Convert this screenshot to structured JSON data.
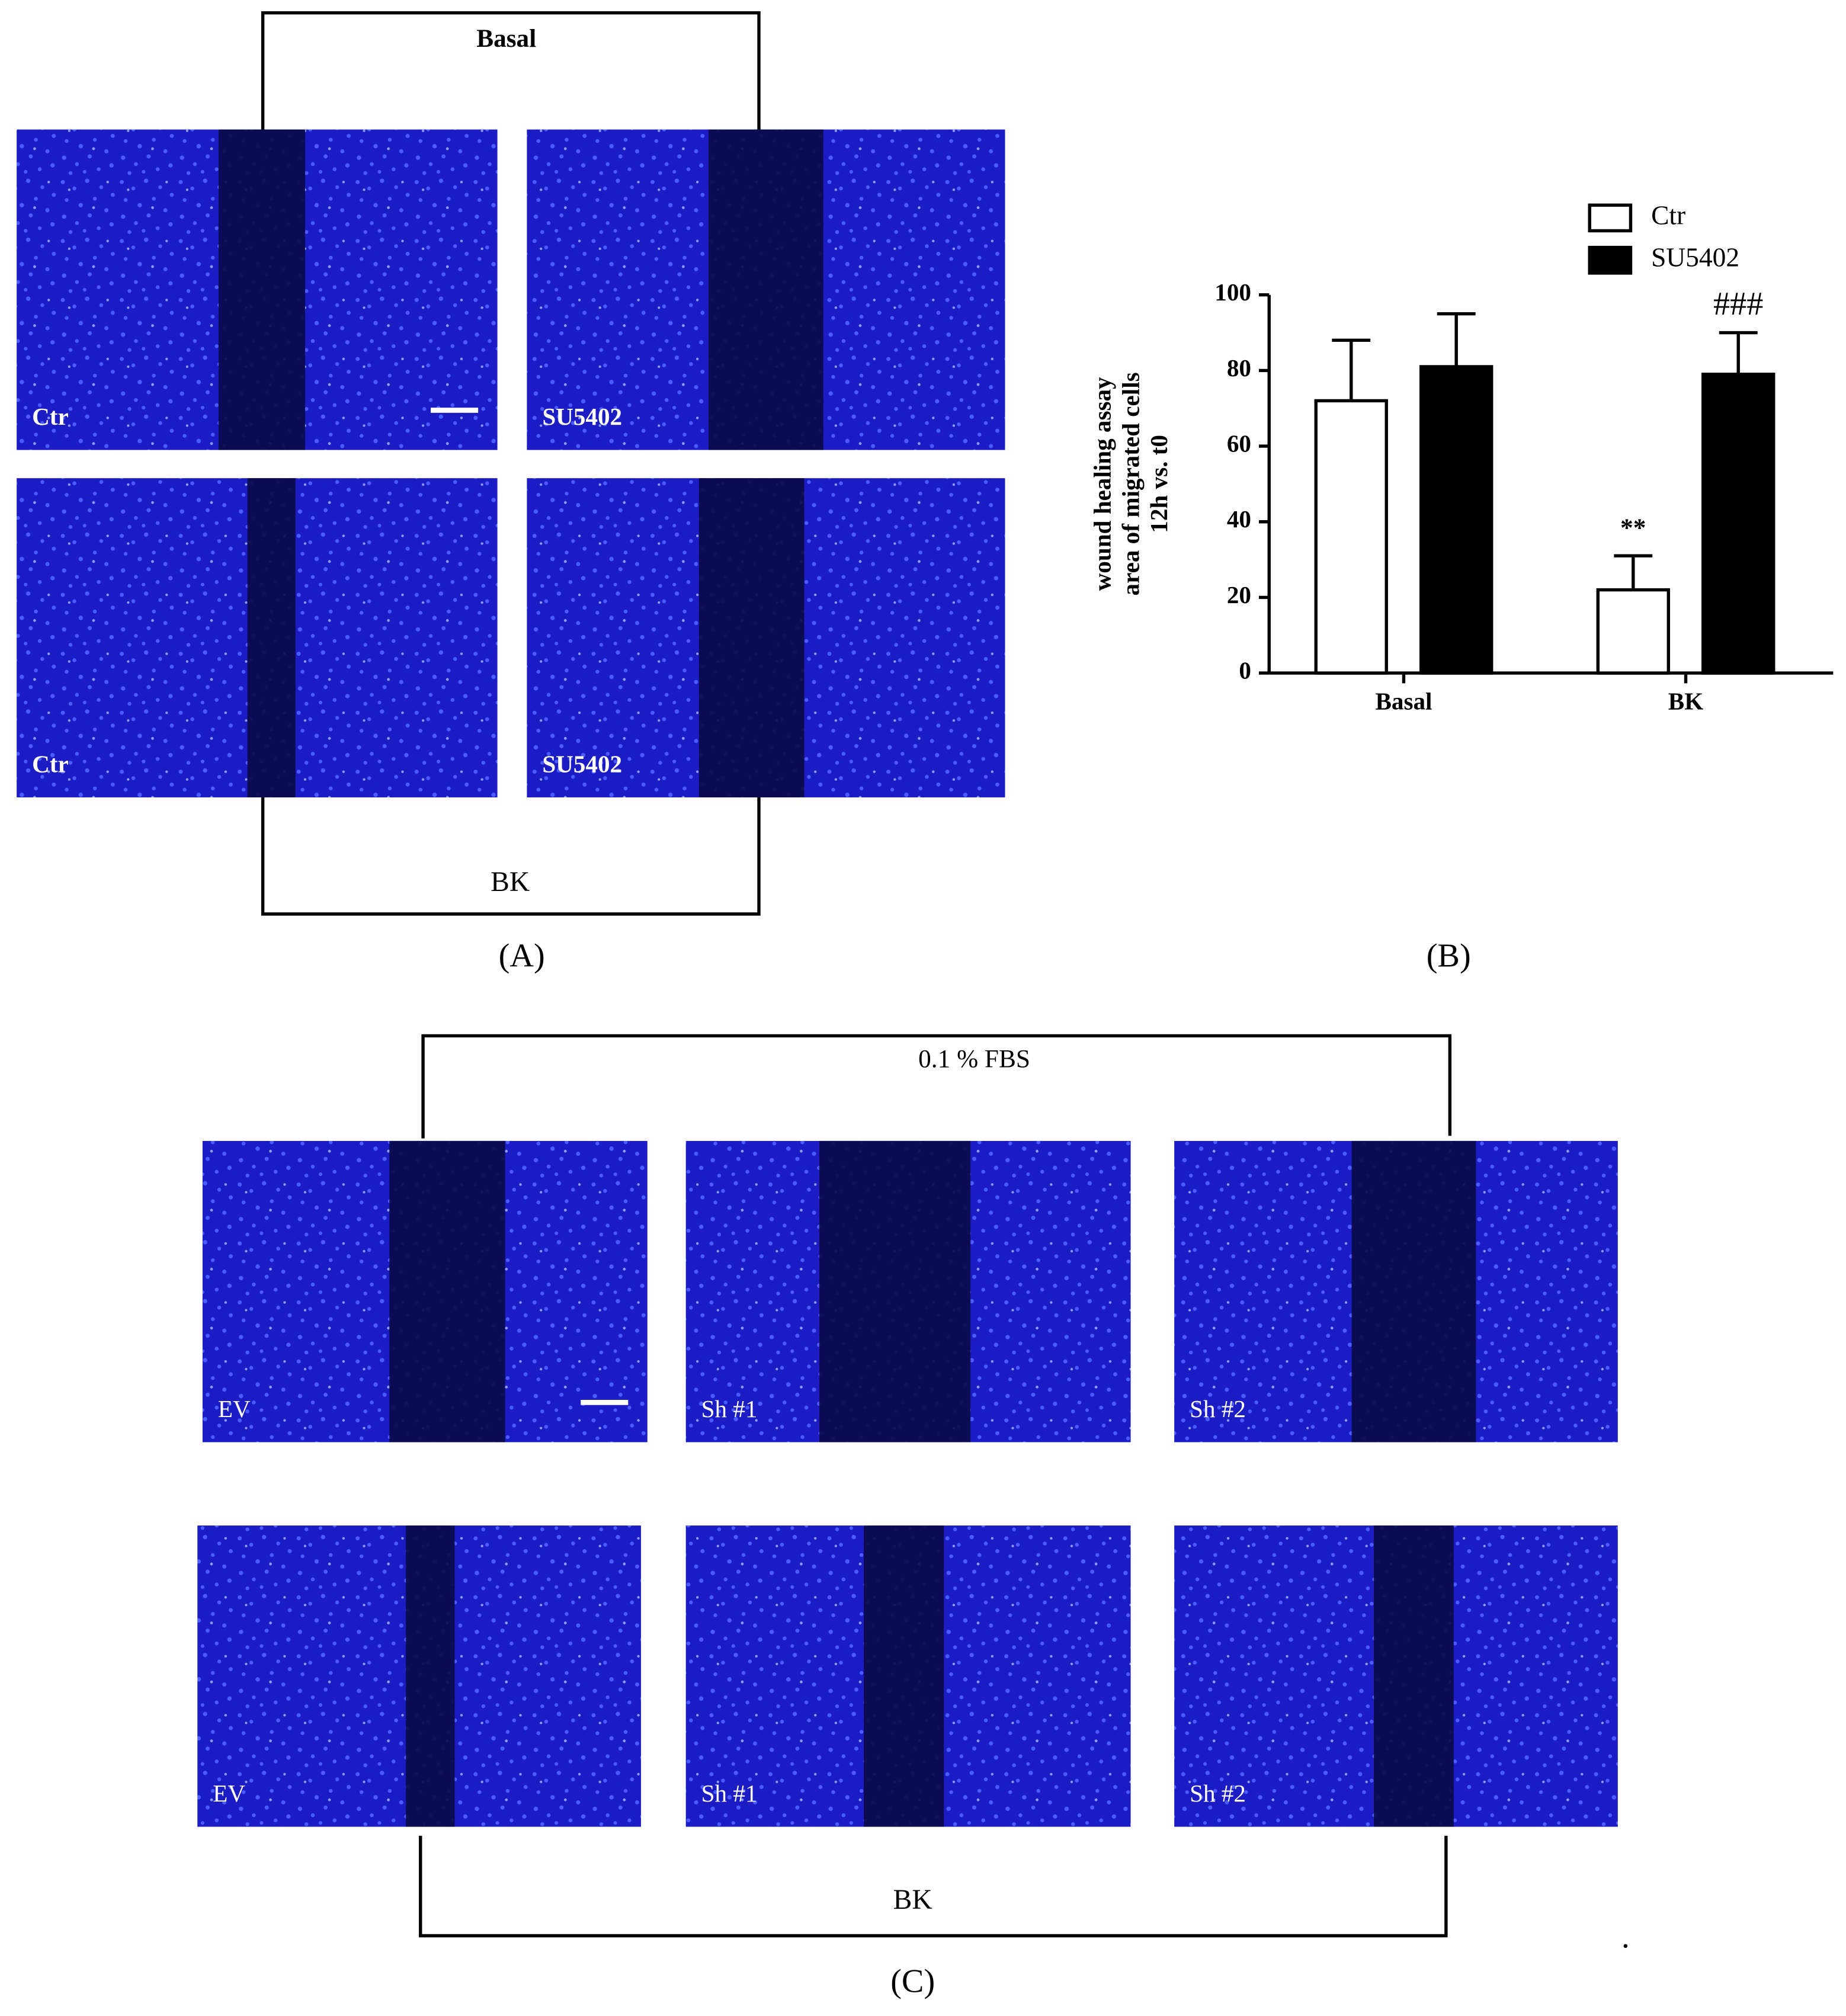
{
  "panel_a": {
    "label": "(A)",
    "top_group": "Basal",
    "bottom_group": "BK",
    "images": [
      "Ctr",
      "SU5402",
      "Ctr",
      "SU5402"
    ]
  },
  "panel_b": {
    "label": "(B)"
  },
  "chart_data": {
    "type": "bar",
    "ylabel": [
      "wound healing assay",
      "area of migrated cells",
      "12h vs. t0"
    ],
    "categories": [
      "Basal",
      "BK"
    ],
    "series": [
      {
        "name": "Ctr",
        "color": "#ffffff",
        "values": [
          72,
          22
        ],
        "errors": [
          16,
          9
        ],
        "annotations": [
          null,
          "**"
        ]
      },
      {
        "name": "SU5402",
        "color": "#000000",
        "values": [
          81,
          79
        ],
        "errors": [
          14,
          11
        ],
        "annotations": [
          null,
          "###"
        ]
      }
    ],
    "ylim": [
      0,
      100
    ],
    "yticks": [
      0,
      20,
      40,
      60,
      80,
      100
    ],
    "grid": false,
    "legend": "top-right"
  },
  "panel_c": {
    "label": "(C)",
    "top_group": "0.1 % FBS",
    "bottom_group": "BK",
    "images": [
      "EV",
      "Sh #1",
      "Sh #2",
      "EV",
      "Sh #1",
      "Sh #2"
    ]
  }
}
